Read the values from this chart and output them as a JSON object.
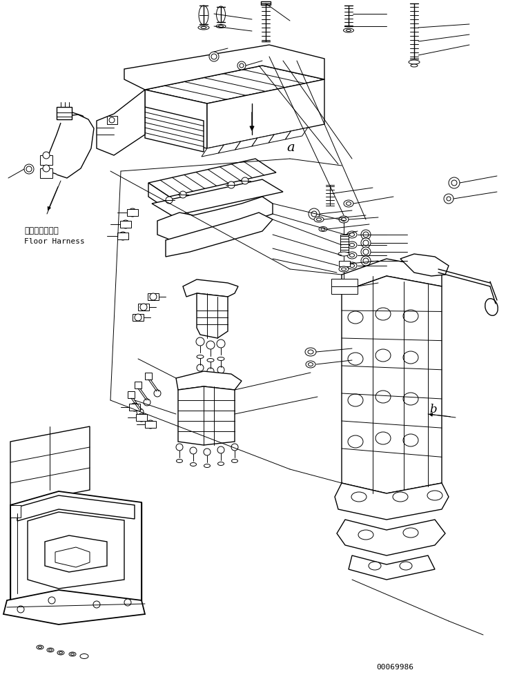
{
  "figsize": [
    7.49,
    9.84
  ],
  "dpi": 100,
  "background_color": "#ffffff",
  "doc_number": "00069986",
  "label_japanese": "フロアハーネス",
  "label_english": "Floor Harness",
  "label_a": "a",
  "label_b": "b"
}
